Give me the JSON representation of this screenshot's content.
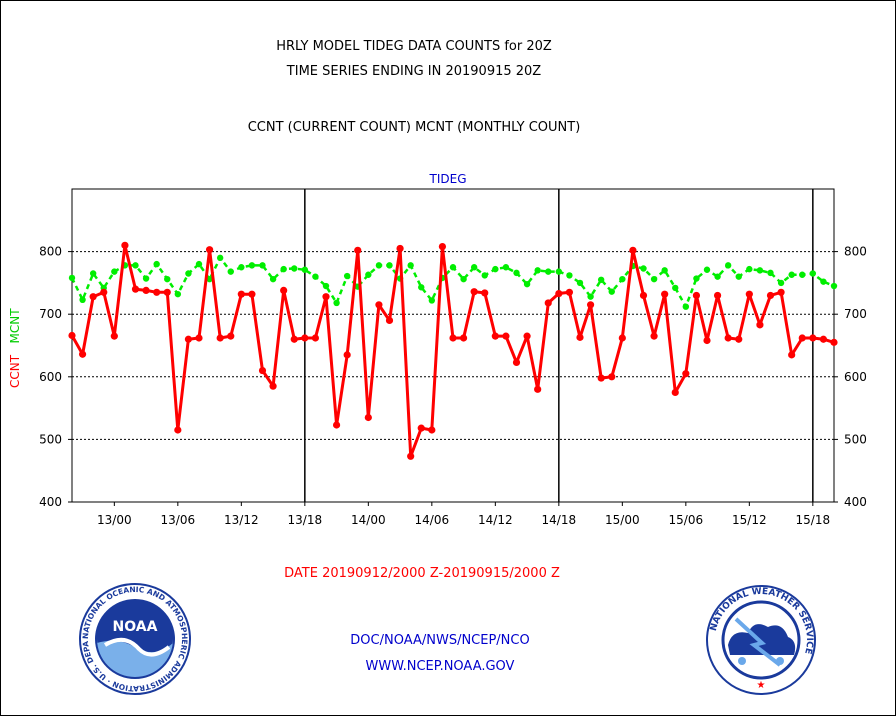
{
  "header": {
    "title_line1": "HRLY MODEL TIDEG DATA COUNTS for 20Z",
    "title_line2": "TIME SERIES ENDING IN 20190915 20Z",
    "subtitle": "CCNT (CURRENT COUNT) MCNT (MONTHLY COUNT)"
  },
  "footer": {
    "date_range": "DATE 20190912/2000 Z-20190915/2000 Z",
    "org": "DOC/NOAA/NWS/NCEP/NCO",
    "url": "WWW.NCEP.NOAA.GOV",
    "noaa_logo_text": "NOAA",
    "noaa_ring_text": "NATIONAL OCEANIC AND ATMOSPHERIC ADMINISTRATION · U.S. DEPARTMENT OF COMMERCE ·",
    "nws_ring_text": "NATIONAL WEATHER SERVICE"
  },
  "colors": {
    "ccnt": "#ff0000",
    "mcnt": "#00ee00",
    "panel_title": "#0000cc",
    "background": "#ffffff"
  },
  "chart_data": {
    "type": "line",
    "title": "TIDEG",
    "ylabel_left_1": "CCNT",
    "ylabel_left_2": "MCNT",
    "ylim": [
      400,
      900
    ],
    "yticks": [
      400,
      500,
      600,
      700,
      800
    ],
    "ytick_labels": [
      "400",
      "500",
      "600",
      "700",
      "800"
    ],
    "grid": true,
    "x_start": "2019-09-12 20Z",
    "x_step_hours": 1,
    "xtick_labels": [
      "13/00",
      "13/06",
      "13/12",
      "13/18",
      "14/00",
      "14/06",
      "14/12",
      "14/18",
      "15/00",
      "15/06",
      "15/12",
      "15/18"
    ],
    "xtick_hour_index": [
      4,
      10,
      16,
      22,
      28,
      34,
      40,
      46,
      52,
      58,
      64,
      70
    ],
    "day_boundary_hour_index": [
      22,
      46,
      70
    ],
    "series": [
      {
        "name": "CCNT",
        "values": [
          666,
          636,
          728,
          735,
          665,
          810,
          740,
          738,
          735,
          735,
          515,
          660,
          662,
          803,
          662,
          665,
          732,
          732,
          610,
          585,
          738,
          660,
          662,
          662,
          728,
          523,
          635,
          802,
          535,
          715,
          690,
          805,
          473,
          518,
          515,
          808,
          662,
          662,
          736,
          734,
          665,
          665,
          623,
          665,
          580,
          718,
          733,
          735,
          663,
          715,
          598,
          600,
          662,
          802,
          730,
          665,
          732,
          575,
          605,
          730,
          658,
          730,
          662,
          660,
          732,
          683,
          730,
          735,
          635,
          662,
          662,
          660,
          655
        ]
      },
      {
        "name": "MCNT",
        "values": [
          758,
          723,
          765,
          742,
          768,
          778,
          778,
          757,
          780,
          756,
          732,
          765,
          780,
          756,
          790,
          768,
          775,
          778,
          778,
          756,
          772,
          773,
          771,
          760,
          745,
          718,
          761,
          744,
          763,
          778,
          778,
          757,
          778,
          743,
          722,
          758,
          775,
          756,
          775,
          762,
          772,
          775,
          766,
          748,
          770,
          768,
          768,
          762,
          750,
          728,
          755,
          736,
          756,
          777,
          773,
          756,
          770,
          742,
          712,
          757,
          771,
          760,
          778,
          760,
          772,
          770,
          766,
          750,
          763,
          763,
          765,
          752,
          745
        ]
      }
    ]
  }
}
